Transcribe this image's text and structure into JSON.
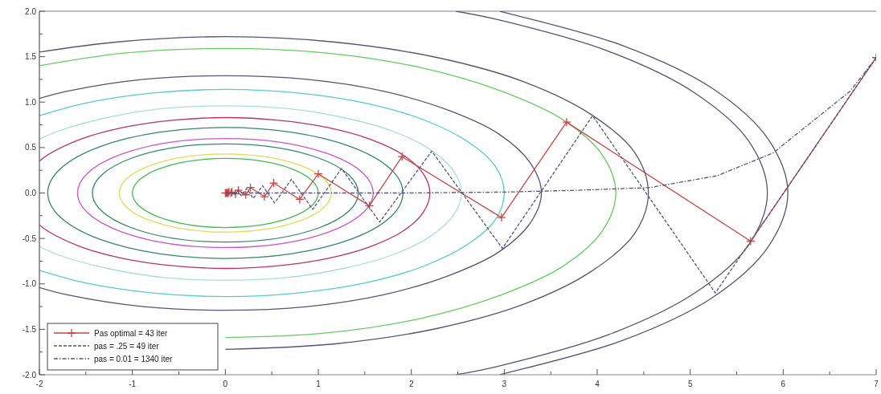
{
  "chart_data": {
    "type": "line",
    "legend": "bottom left",
    "marker": "none",
    "line_style": "solid",
    "xlim": [
      -2,
      7
    ],
    "ylim": [
      -2,
      2
    ],
    "xticks": [
      -2,
      {
        "value": -1.5,
        "label": null
      },
      -1,
      {
        "value": -0.5,
        "label": null
      },
      0,
      {
        "value": 0.5,
        "label": null
      },
      1,
      {
        "value": 1.5,
        "label": null
      },
      2,
      {
        "value": 2.5,
        "label": null
      },
      3,
      {
        "value": 3.5,
        "label": null
      },
      4,
      {
        "value": 4.5,
        "label": null
      },
      5,
      {
        "value": 5.5,
        "label": null
      },
      6,
      {
        "value": 6.5,
        "label": null
      },
      7
    ],
    "yticks": [
      {
        "value": -2,
        "label": "-2.0"
      },
      {
        "value": -1.75,
        "label": null
      },
      {
        "value": -1.5,
        "label": "-1.5"
      },
      {
        "value": -1.25,
        "label": null
      },
      {
        "value": -1,
        "label": "-1.0"
      },
      {
        "value": -0.75,
        "label": null
      },
      {
        "value": -0.5,
        "label": "-0.5"
      },
      {
        "value": -0.25,
        "label": null
      },
      {
        "value": 0,
        "label": "0.0"
      },
      {
        "value": 0.25,
        "label": null
      },
      {
        "value": 0.5,
        "label": "0.5"
      },
      {
        "value": 0.75,
        "label": null
      },
      {
        "value": 1,
        "label": "1.0"
      },
      {
        "value": 1.25,
        "label": null
      },
      {
        "value": 1.5,
        "label": "1.5"
      },
      {
        "value": 1.75,
        "label": null
      },
      {
        "value": 2,
        "label": "2.0"
      }
    ],
    "series": [
      {
        "color": "#bb3366",
        "x": [
          -2,
          -1.91,
          -1.56,
          -1.1,
          -0.57,
          0,
          0.57,
          1.1,
          1.56,
          1.91,
          2.13,
          2.2,
          2.13,
          1.91,
          1.56,
          1.1,
          0.57,
          0,
          -0.57,
          -1.1,
          -1.56,
          -1.91,
          -2
        ],
        "values": [
          0.35,
          0.42,
          0.59,
          0.72,
          0.8,
          0.83,
          0.8,
          0.72,
          0.59,
          0.42,
          0.21,
          0,
          -0.21,
          -0.42,
          -0.59,
          -0.72,
          -0.8,
          -0.83,
          -0.8,
          -0.72,
          -0.59,
          -0.42,
          -0.35
        ]
      },
      {
        "color": "#aadddd",
        "x": [
          -2,
          -1.8,
          -1.27,
          -0.66,
          0,
          0.66,
          1.27,
          1.8,
          2.2,
          2.45,
          2.54,
          2.45,
          2.2,
          1.8,
          1.27,
          0.66,
          0,
          -0.66,
          -1.27,
          -1.8,
          -2
        ],
        "values": [
          0.59,
          0.68,
          0.83,
          0.93,
          0.96,
          0.93,
          0.83,
          0.68,
          0.48,
          0.25,
          0,
          -0.25,
          -0.48,
          -0.68,
          -0.83,
          -0.93,
          -0.96,
          -0.93,
          -0.83,
          -0.68,
          -0.59
        ]
      },
      {
        "color": "#55cccc",
        "x": [
          -2,
          -1.5,
          -0.78,
          0,
          0.78,
          1.5,
          2.12,
          2.6,
          2.9,
          3,
          2.9,
          2.6,
          2.12,
          1.5,
          0.78,
          0,
          -0.78,
          -1.5,
          -2
        ],
        "values": [
          0.85,
          0.99,
          1.1,
          1.14,
          1.1,
          0.99,
          0.81,
          0.57,
          0.3,
          0,
          -0.3,
          -0.57,
          -0.81,
          -0.99,
          -1.1,
          -1.14,
          -1.1,
          -0.99,
          -0.85
        ]
      },
      {
        "color": "#555577",
        "x": [
          -2,
          -1.7,
          -0.88,
          0,
          0.88,
          1.7,
          2.4,
          2.94,
          3.28,
          3.4,
          3.28,
          2.94,
          2.4,
          1.7,
          0.88,
          0,
          -0.88,
          -1.7,
          -2
        ],
        "values": [
          1.04,
          1.12,
          1.25,
          1.29,
          1.25,
          1.12,
          0.91,
          0.65,
          0.33,
          0,
          -0.33,
          -0.65,
          -0.91,
          -1.12,
          -1.25,
          -1.29,
          -1.25,
          -1.12,
          -1.04
        ]
      },
      {
        "color": "#66cc66",
        "x": [
          -2,
          -1.09,
          0,
          1.09,
          2.1,
          2.97,
          3.64,
          4.06,
          4.2,
          4.06,
          3.64,
          2.97,
          2.1,
          1.09,
          0
        ],
        "values": [
          1.4,
          1.54,
          1.59,
          1.54,
          1.38,
          1.12,
          0.8,
          0.41,
          0,
          -0.41,
          -0.8,
          -1.12,
          -1.38,
          -1.54,
          -1.59
        ]
      },
      {
        "color": "#555577",
        "x": [
          -2,
          -1.18,
          0,
          1.18,
          2.28,
          3.22,
          3.94,
          4.4,
          4.55,
          4.4,
          3.94,
          3.22,
          2.28,
          1.18,
          0
        ],
        "values": [
          1.55,
          1.66,
          1.72,
          1.66,
          1.49,
          1.22,
          0.86,
          0.45,
          0,
          -0.45,
          -0.86,
          -1.22,
          -1.49,
          -1.66,
          -1.72
        ]
      },
      {
        "color": "#555577",
        "x": [
          2.48,
          2.92,
          4.12,
          5.05,
          5.63,
          5.83,
          5.63,
          5.05,
          4.12,
          2.92,
          2.48
        ],
        "values": [
          2,
          1.91,
          1.56,
          1.1,
          0.57,
          0,
          -0.57,
          -1.1,
          -1.56,
          -1.91,
          -2
        ]
      },
      {
        "color": "#555577",
        "x": [
          2.95,
          3.03,
          4.28,
          5.24,
          5.84,
          6.05,
          5.84,
          5.24,
          4.28,
          3.03,
          2.95
        ],
        "values": [
          2,
          1.98,
          1.62,
          1.15,
          0.59,
          0,
          -0.59,
          -1.15,
          -1.62,
          -1.98,
          -2
        ]
      },
      {
        "name": "Pas optimal = 43 iter",
        "color": "#cc4444",
        "marker": "cross",
        "x": [
          7,
          5.65,
          3.67,
          2.97,
          1.9,
          1.55,
          1,
          0.8,
          0.52,
          0.42,
          0.27,
          0.22,
          0.14,
          0.11,
          0.07,
          0.06,
          0.04,
          0.03,
          0.02,
          0.01,
          0
        ],
        "values": [
          1.49,
          -0.53,
          0.78,
          -0.27,
          0.4,
          -0.14,
          0.21,
          -0.07,
          0.11,
          -0.04,
          0.06,
          -0.02,
          0.03,
          -0.01,
          0.01,
          0,
          0.01,
          0,
          0,
          0,
          0
        ]
      },
      {
        "name": "pas = .25 = 49 iter",
        "color": "#555577",
        "line_style": "dashed",
        "x": [
          7,
          5.27,
          3.95,
          2.98,
          2.22,
          1.66,
          1.25,
          0.94,
          0.71,
          0.53,
          0.4,
          0.3,
          0.23,
          0.17,
          0.13,
          0.1,
          0.07,
          0.05,
          0.03,
          0
        ],
        "values": [
          1.49,
          -1.1,
          0.85,
          -0.61,
          0.46,
          -0.32,
          0.27,
          -0.18,
          0.15,
          -0.11,
          0.08,
          -0.06,
          0.05,
          -0.03,
          0.03,
          -0.02,
          0.01,
          -0.01,
          0,
          0
        ]
      },
      {
        "name": "pas = 0.01 = 1340 iter",
        "color": "#555577",
        "line_style": "dotted",
        "x": [
          7,
          6.72,
          5.89,
          5.29,
          4.57,
          3.79,
          3,
          2,
          1,
          0
        ],
        "values": [
          1.49,
          1.12,
          0.44,
          0.19,
          0.06,
          0.03,
          0.01,
          0,
          0,
          0
        ]
      }
    ]
  }
}
